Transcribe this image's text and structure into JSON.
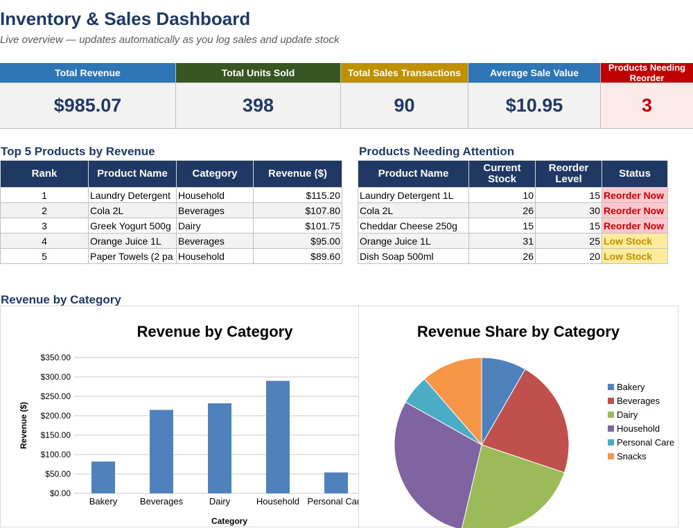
{
  "header": {
    "title": "Inventory & Sales Dashboard",
    "subtitle": "Live overview — updates automatically as you log sales and update stock"
  },
  "kpis": [
    {
      "label": "Total Revenue",
      "value": "$985.07",
      "color": "#2e75b6"
    },
    {
      "label": "Total Units Sold",
      "value": "398",
      "color": "#375623"
    },
    {
      "label": "Total Sales Transactions",
      "value": "90",
      "color": "#bf9000"
    },
    {
      "label": "Average Sale Value",
      "value": "$10.95",
      "color": "#2e75b6"
    },
    {
      "label": "Products Needing Reorder",
      "value": "3",
      "color": "#c00000"
    }
  ],
  "top_products": {
    "title": "Top 5 Products by Revenue",
    "columns": [
      "Rank",
      "Product Name",
      "Category",
      "Revenue ($)"
    ],
    "rows": [
      {
        "rank": "1",
        "name": "Laundry Detergent",
        "category": "Household",
        "revenue": "$115.20"
      },
      {
        "rank": "2",
        "name": "Cola 2L",
        "category": "Beverages",
        "revenue": "$107.80"
      },
      {
        "rank": "3",
        "name": "Greek Yogurt 500g",
        "category": "Dairy",
        "revenue": "$101.75"
      },
      {
        "rank": "4",
        "name": "Orange Juice 1L",
        "category": "Beverages",
        "revenue": "$95.00"
      },
      {
        "rank": "5",
        "name": "Paper Towels (2 pa",
        "category": "Household",
        "revenue": "$89.60"
      }
    ]
  },
  "attention": {
    "title": "Products Needing Attention",
    "columns": [
      "Product Name",
      "Current Stock",
      "Reorder Level",
      "Status"
    ],
    "rows": [
      {
        "name": "Laundry Detergent 1L",
        "stock": "10",
        "reorder": "15",
        "status": "Reorder Now"
      },
      {
        "name": "Cola 2L",
        "stock": "26",
        "reorder": "30",
        "status": "Reorder Now"
      },
      {
        "name": "Cheddar Cheese 250g",
        "stock": "15",
        "reorder": "15",
        "status": "Reorder Now"
      },
      {
        "name": "Orange Juice 1L",
        "stock": "31",
        "reorder": "25",
        "status": "Low Stock"
      },
      {
        "name": "Dish Soap 500ml",
        "stock": "26",
        "reorder": "20",
        "status": "Low Stock"
      }
    ]
  },
  "charts_section": {
    "title": "Revenue by Category"
  },
  "chart_data": [
    {
      "type": "bar",
      "title": "Revenue by Category",
      "xlabel": "Category",
      "ylabel": "Revenue ($)",
      "categories": [
        "Bakery",
        "Beverages",
        "Dairy",
        "Household",
        "Personal Care"
      ],
      "values": [
        82,
        215,
        232,
        290,
        54
      ],
      "ylim": [
        0,
        350
      ],
      "yticks": [
        "$0.00",
        "$50.00",
        "$100.00",
        "$150.00",
        "$200.00",
        "$250.00",
        "$300.00",
        "$350.00"
      ],
      "bar_color": "#4f81bd",
      "grid": true
    },
    {
      "type": "pie",
      "title": "Revenue Share by Category",
      "legend_position": "right",
      "categories": [
        "Bakery",
        "Beverages",
        "Dairy",
        "Household",
        "Personal Care",
        "Snacks"
      ],
      "values": [
        82,
        215,
        232,
        290,
        54,
        112
      ],
      "colors": [
        "#4f81bd",
        "#c0504d",
        "#9bbb59",
        "#8064a2",
        "#4bacc6",
        "#f79646"
      ]
    }
  ]
}
